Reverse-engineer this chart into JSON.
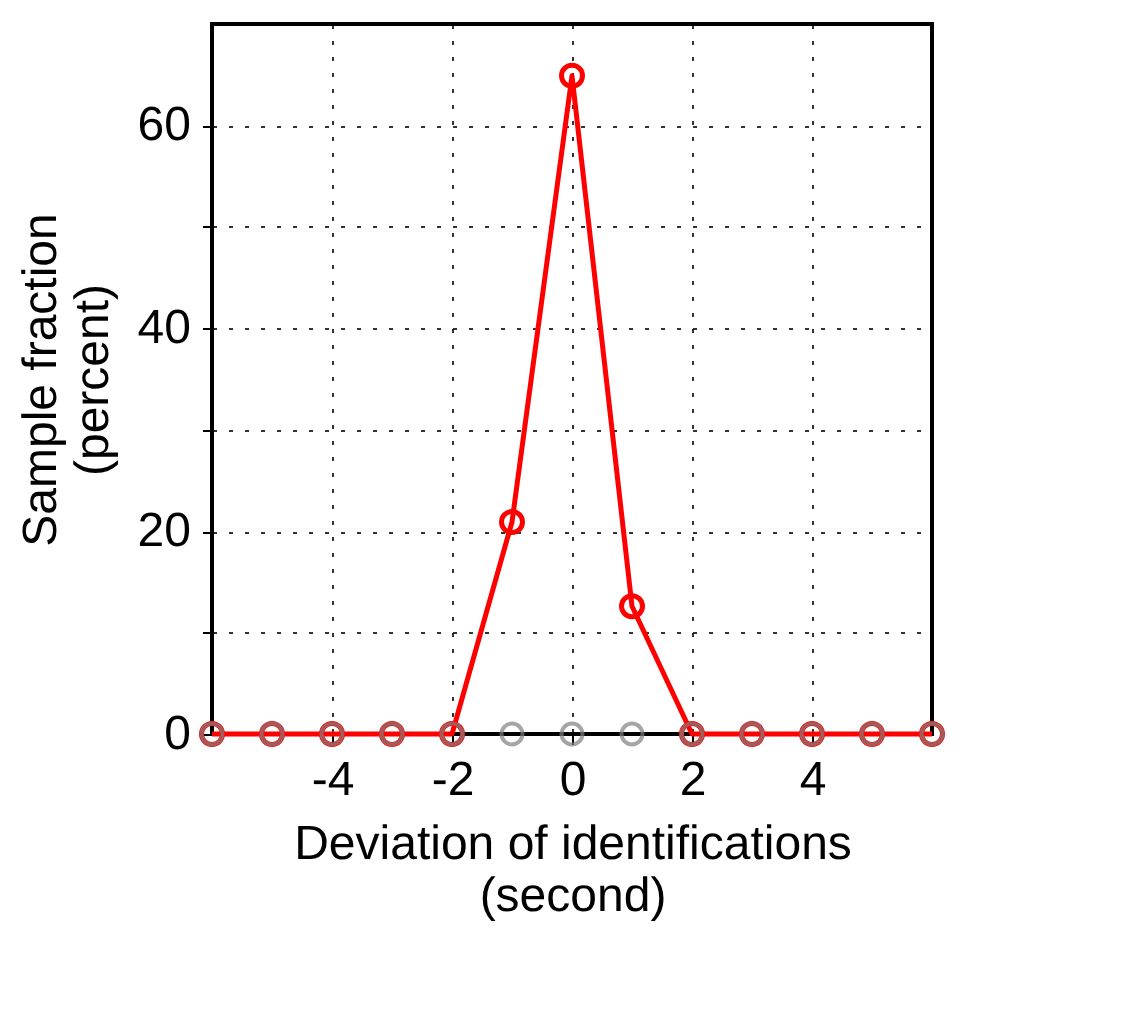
{
  "chart_data": {
    "type": "line",
    "xlabel": "Deviation of identifications\n(second)",
    "ylabel": "Sample fraction\n(percent)",
    "x": [
      -6,
      -5,
      -4,
      -3,
      -2,
      -1,
      0,
      1,
      2,
      3,
      4,
      5,
      6
    ],
    "series": [
      {
        "color": "#ff0000",
        "values": [
          0,
          0,
          0,
          0,
          0,
          20.9,
          64.9,
          12.6,
          0,
          0,
          0,
          0,
          0
        ]
      },
      {
        "type": "scatter",
        "color": "#808080",
        "values": [
          0,
          0,
          0,
          0,
          0,
          0,
          0,
          0,
          0,
          0,
          0,
          0,
          0
        ]
      }
    ],
    "xlim": [
      -6,
      6
    ],
    "xticks": [
      -4,
      -2,
      0,
      2,
      4
    ],
    "ylim": [
      0,
      70
    ],
    "yticks": [
      0,
      {
        "value": 10,
        "label": null
      },
      20,
      {
        "value": 30,
        "label": null
      },
      40,
      {
        "value": 50,
        "label": null
      },
      60
    ],
    "grid": true,
    "marker": "circle",
    "line_style": "solid"
  }
}
